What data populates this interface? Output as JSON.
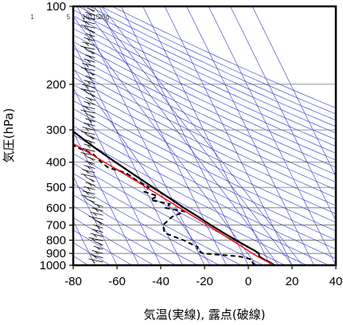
{
  "chart_data": {
    "type": "line",
    "subtype": "skew-T log-P",
    "xlabel": "気温(実線), 露点(破線)",
    "ylabel": "気圧(hPa)",
    "xlim": [
      -80,
      40
    ],
    "ylim": [
      1000,
      100
    ],
    "y_scale": "log",
    "x_ticks": [
      -80,
      -60,
      -40,
      -20,
      0,
      20,
      40
    ],
    "y_ticks": [
      1000,
      900,
      800,
      700,
      600,
      500,
      400,
      300,
      200,
      100
    ],
    "mixing_ratio_labels": [
      "1",
      "5",
      "10",
      "15",
      "20g"
    ],
    "mixing_ratio_values": [
      1,
      5,
      10,
      15,
      20
    ],
    "grid": true,
    "colors": {
      "temperature": "#000000",
      "dewpoint": "#000000",
      "parcel": "#ff0000",
      "guides": "#3333cc",
      "grid": "#555555",
      "wind": "#000000"
    },
    "series": [
      {
        "style": "solid",
        "points": [
          {
            "p": 1000,
            "t": 12.0
          },
          {
            "p": 975,
            "t": 10.5
          },
          {
            "p": 950,
            "t": 8.5
          },
          {
            "p": 925,
            "t": 7.0
          },
          {
            "p": 900,
            "t": 7.5
          },
          {
            "p": 875,
            "t": 6.0
          },
          {
            "p": 850,
            "t": 4.0
          },
          {
            "p": 800,
            "t": 0.0
          },
          {
            "p": 750,
            "t": -4.0
          },
          {
            "p": 700,
            "t": -8.0
          },
          {
            "p": 650,
            "t": -12.0
          },
          {
            "p": 600,
            "t": -16.5
          },
          {
            "p": 550,
            "t": -21.0
          },
          {
            "p": 500,
            "t": -26.0
          },
          {
            "p": 450,
            "t": -31.5
          },
          {
            "p": 400,
            "t": -37.5
          },
          {
            "p": 350,
            "t": -44.0
          },
          {
            "p": 300,
            "t": -50.5
          },
          {
            "p": 250,
            "t": -55.5
          },
          {
            "p": 225,
            "t": -57.5
          },
          {
            "p": 220,
            "t": -59.0
          },
          {
            "p": 210,
            "t": -57.0
          },
          {
            "p": 200,
            "t": -56.0
          },
          {
            "p": 180,
            "t": -57.0
          },
          {
            "p": 160,
            "t": -60.0
          },
          {
            "p": 140,
            "t": -64.0
          },
          {
            "p": 120,
            "t": -69.0
          },
          {
            "p": 100,
            "t": -73.0
          }
        ]
      },
      {
        "style": "dashed",
        "points": [
          {
            "p": 1000,
            "t": 3.0
          },
          {
            "p": 975,
            "t": 2.5
          },
          {
            "p": 950,
            "t": 3.0
          },
          {
            "p": 925,
            "t": -2.0
          },
          {
            "p": 900,
            "t": -18.0
          },
          {
            "p": 875,
            "t": -20.0
          },
          {
            "p": 850,
            "t": -19.0
          },
          {
            "p": 800,
            "t": -24.0
          },
          {
            "p": 750,
            "t": -31.0
          },
          {
            "p": 700,
            "t": -30.0
          },
          {
            "p": 650,
            "t": -24.0
          },
          {
            "p": 620,
            "t": -17.0
          },
          {
            "p": 600,
            "t": -25.0
          },
          {
            "p": 580,
            "t": -22.0
          },
          {
            "p": 560,
            "t": -30.0
          },
          {
            "p": 540,
            "t": -26.0
          },
          {
            "p": 520,
            "t": -31.0
          },
          {
            "p": 500,
            "t": -28.0
          },
          {
            "p": 470,
            "t": -32.0
          },
          {
            "p": 440,
            "t": -35.0
          },
          {
            "p": 420,
            "t": -42.0
          },
          {
            "p": 400,
            "t": -44.0
          },
          {
            "p": 370,
            "t": -46.0
          },
          {
            "p": 350,
            "t": -52.0
          },
          {
            "p": 320,
            "t": -56.0
          },
          {
            "p": 310,
            "t": -62.0
          },
          {
            "p": 305,
            "t": -72.0
          }
        ]
      },
      {
        "style": "parcel",
        "points": [
          {
            "p": 1000,
            "t": 12.0
          },
          {
            "p": 950,
            "t": 8.0
          },
          {
            "p": 900,
            "t": 4.5
          },
          {
            "p": 850,
            "t": 1.5
          },
          {
            "p": 800,
            "t": -2.0
          },
          {
            "p": 700,
            "t": -9.5
          },
          {
            "p": 600,
            "t": -18.5
          },
          {
            "p": 500,
            "t": -29.0
          },
          {
            "p": 400,
            "t": -42.5
          },
          {
            "p": 300,
            "t": -60.0
          },
          {
            "p": 250,
            "t": -71.5
          },
          {
            "p": 210,
            "t": -82.0
          }
        ]
      }
    ]
  }
}
